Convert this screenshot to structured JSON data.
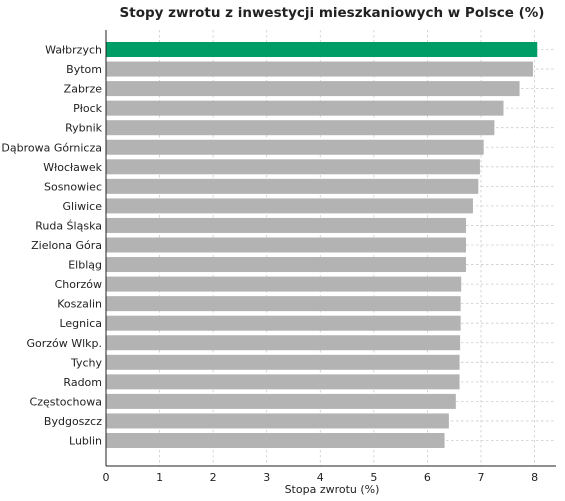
{
  "chart_data": {
    "type": "bar",
    "orientation": "horizontal",
    "title": "Stopy zwrotu z inwestycji mieszkaniowych w Polsce (%)",
    "xlabel": "Stopa zwrotu (%)",
    "ylabel": "",
    "xlim": [
      0,
      8.4
    ],
    "xticks": [
      0,
      1,
      2,
      3,
      4,
      5,
      6,
      7,
      8
    ],
    "grid": true,
    "categories": [
      "Wałbrzych",
      "Bytom",
      "Zabrze",
      "Płock",
      "Rybnik",
      "Dąbrowa Górnicza",
      "Włocławek",
      "Sosnowiec",
      "Gliwice",
      "Ruda Śląska",
      "Zielona Góra",
      "Elbląg",
      "Chorzów",
      "Koszalin",
      "Legnica",
      "Gorzów Wlkp.",
      "Tychy",
      "Radom",
      "Częstochowa",
      "Bydgoszcz",
      "Lublin"
    ],
    "values": [
      8.05,
      7.97,
      7.72,
      7.42,
      7.25,
      7.05,
      6.98,
      6.95,
      6.85,
      6.72,
      6.72,
      6.72,
      6.63,
      6.62,
      6.62,
      6.61,
      6.6,
      6.6,
      6.53,
      6.4,
      6.32
    ],
    "highlight_color": "#009e66",
    "bar_color": "#b3b3b3"
  }
}
